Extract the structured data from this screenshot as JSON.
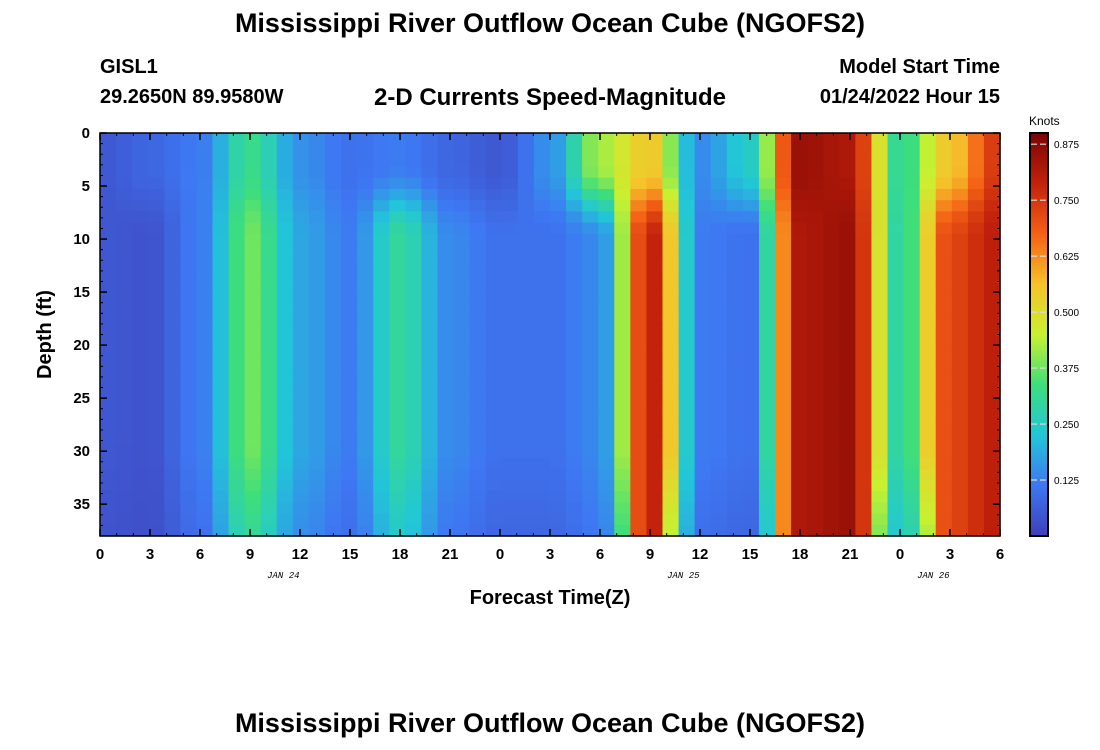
{
  "header": {
    "title": "Mississippi River Outflow Ocean Cube (NGOFS2)",
    "station": "GISL1",
    "coords": "29.2650N  89.9580W",
    "model_start_label": "Model Start Time",
    "model_start_value": "01/24/2022 Hour 15"
  },
  "footer": {
    "title_repeat": "Mississippi River Outflow Ocean Cube (NGOFS2)"
  },
  "chart_data": {
    "type": "heatmap",
    "title": "2-D Currents Speed-Magnitude",
    "xlabel": "Forecast Time(Z)",
    "ylabel": "Depth (ft)",
    "x_ticks": [
      "0",
      "3",
      "6",
      "9",
      "12",
      "15",
      "18",
      "21",
      "0",
      "3",
      "6",
      "9",
      "12",
      "15",
      "18",
      "21",
      "0",
      "3",
      "6"
    ],
    "date_labels": [
      {
        "text": "JAN 24",
        "hours_since_start": 11
      },
      {
        "text": "JAN 25",
        "hours_since_start": 35
      },
      {
        "text": "JAN 26",
        "hours_since_start": 50
      }
    ],
    "xlim_hours": [
      0,
      54
    ],
    "y_ticks": [
      0,
      5,
      10,
      15,
      20,
      25,
      30,
      35
    ],
    "ylim_ft": [
      0,
      38
    ],
    "y_inverted": true,
    "colorbar": {
      "unit": "Knots",
      "ticks": [
        0.125,
        0.25,
        0.375,
        0.5,
        0.625,
        0.75,
        0.875
      ],
      "tick_labels": [
        "0.125",
        "0.250",
        "0.375",
        "0.500",
        "0.625",
        "0.750",
        "0.875"
      ],
      "range": [
        0,
        0.9
      ],
      "colormap": [
        "#3f3fb8",
        "#3e77f2",
        "#22c6d8",
        "#3dde7c",
        "#c8f130",
        "#f6c22b",
        "#f46015",
        "#c2210b",
        "#7a0403"
      ]
    },
    "field_description": {
      "depth_ft_near_surface": [
        0,
        5,
        10,
        15,
        20,
        25,
        30,
        35,
        38
      ],
      "hours": [
        0,
        3,
        6,
        9,
        12,
        15,
        18,
        21,
        24,
        27,
        30,
        33,
        36,
        39,
        42,
        45,
        48,
        51,
        54
      ],
      "surface_speed_knots": [
        0.05,
        0.08,
        0.12,
        0.32,
        0.15,
        0.1,
        0.12,
        0.08,
        0.05,
        0.15,
        0.42,
        0.55,
        0.14,
        0.25,
        0.85,
        0.82,
        0.3,
        0.55,
        0.75
      ],
      "subsurface_speed_knots": [
        0.05,
        0.04,
        0.12,
        0.38,
        0.18,
        0.12,
        0.3,
        0.14,
        0.1,
        0.1,
        0.14,
        0.8,
        0.12,
        0.1,
        0.82,
        0.85,
        0.28,
        0.72,
        0.8
      ]
    }
  }
}
